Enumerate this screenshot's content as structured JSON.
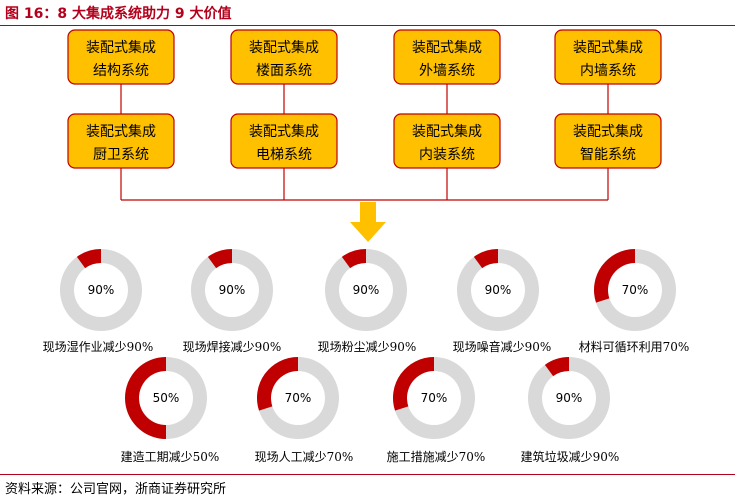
{
  "title": "图 16：8 大集成系统助力 9 大价值",
  "source": "资料来源：公司官网，浙商证券研究所",
  "colors": {
    "accent": "#c00000",
    "box_fill": "#ffc000",
    "box_border": "#c00000",
    "arrow": "#ffc000",
    "ring_gray": "#d9d9d9"
  },
  "systems": [
    {
      "line1": "装配式集成",
      "line2": "结构系统"
    },
    {
      "line1": "装配式集成",
      "line2": "楼面系统"
    },
    {
      "line1": "装配式集成",
      "line2": "外墙系统"
    },
    {
      "line1": "装配式集成",
      "line2": "内墙系统"
    },
    {
      "line1": "装配式集成",
      "line2": "厨卫系统"
    },
    {
      "line1": "装配式集成",
      "line2": "电梯系统"
    },
    {
      "line1": "装配式集成",
      "line2": "内装系统"
    },
    {
      "line1": "装配式集成",
      "line2": "智能系统"
    }
  ],
  "values": [
    {
      "pct_text": "90%",
      "fraction": 0.9,
      "label": "现场湿作业减少90%"
    },
    {
      "pct_text": "90%",
      "fraction": 0.9,
      "label": "现场焊接减少90%"
    },
    {
      "pct_text": "90%",
      "fraction": 0.9,
      "label": "现场粉尘减少90%"
    },
    {
      "pct_text": "90%",
      "fraction": 0.9,
      "label": "现场噪音减少90%"
    },
    {
      "pct_text": "70%",
      "fraction": 0.7,
      "label": "材料可循环利用70%"
    },
    {
      "pct_text": "50%",
      "fraction": 0.5,
      "label": "建造工期减少50%"
    },
    {
      "pct_text": "70%",
      "fraction": 0.7,
      "label": "现场人工减少70%"
    },
    {
      "pct_text": "70%",
      "fraction": 0.7,
      "label": "施工措施减少70%"
    },
    {
      "pct_text": "90%",
      "fraction": 0.9,
      "label": "建筑垃圾减少90%"
    }
  ]
}
